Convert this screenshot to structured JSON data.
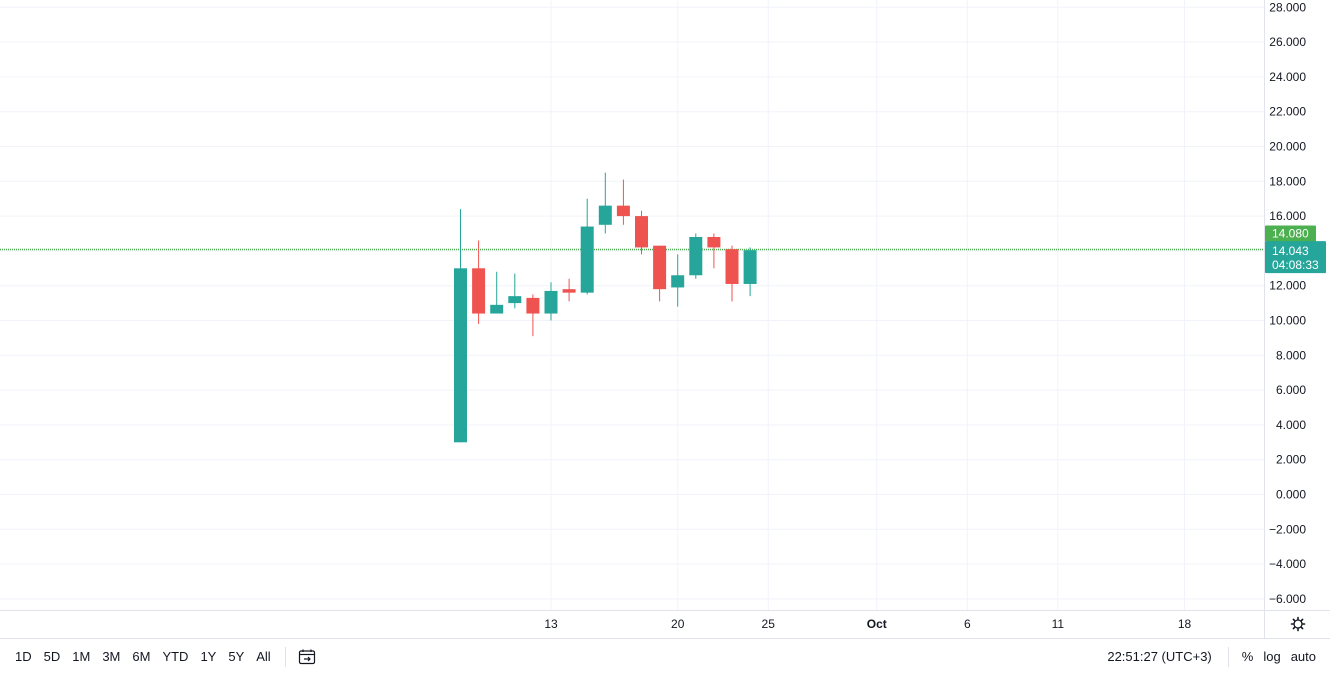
{
  "chart_data": {
    "type": "candlestick",
    "y_ticks": [
      "28.000",
      "26.000",
      "24.000",
      "22.000",
      "20.000",
      "18.000",
      "16.000",
      "14.000",
      "12.000",
      "10.000",
      "8.000",
      "6.000",
      "4.000",
      "2.000",
      "0.000",
      "−2.000",
      "−4.000",
      "−6.000"
    ],
    "ylim": [
      -6.7,
      28.4
    ],
    "x_ticks": [
      {
        "label": "13",
        "day": 13,
        "bold": false
      },
      {
        "label": "20",
        "day": 20,
        "bold": false
      },
      {
        "label": "25",
        "day": 25,
        "bold": false
      },
      {
        "label": "Oct",
        "day": 31,
        "bold": true
      },
      {
        "label": "6",
        "day": 36,
        "bold": false
      },
      {
        "label": "11",
        "day": 41,
        "bold": false
      },
      {
        "label": "18",
        "day": 48,
        "bold": false
      }
    ],
    "candles": [
      {
        "day": 8,
        "open": 3.0,
        "high": 16.4,
        "low": 3.0,
        "close": 13.0
      },
      {
        "day": 9,
        "open": 13.0,
        "high": 14.6,
        "low": 9.8,
        "close": 10.4
      },
      {
        "day": 10,
        "open": 10.4,
        "high": 12.8,
        "low": 10.4,
        "close": 10.9
      },
      {
        "day": 11,
        "open": 11.0,
        "high": 12.7,
        "low": 10.7,
        "close": 11.4
      },
      {
        "day": 12,
        "open": 11.3,
        "high": 11.5,
        "low": 9.1,
        "close": 10.4
      },
      {
        "day": 13,
        "open": 10.4,
        "high": 12.2,
        "low": 10.0,
        "close": 11.7
      },
      {
        "day": 14,
        "open": 11.8,
        "high": 12.4,
        "low": 11.1,
        "close": 11.6
      },
      {
        "day": 15,
        "open": 11.6,
        "high": 17.0,
        "low": 11.5,
        "close": 15.4
      },
      {
        "day": 16,
        "open": 15.5,
        "high": 18.5,
        "low": 15.0,
        "close": 16.6
      },
      {
        "day": 17,
        "open": 16.6,
        "high": 18.1,
        "low": 15.5,
        "close": 16.0
      },
      {
        "day": 18,
        "open": 16.0,
        "high": 16.3,
        "low": 13.8,
        "close": 14.2
      },
      {
        "day": 19,
        "open": 14.3,
        "high": 14.3,
        "low": 11.1,
        "close": 11.8
      },
      {
        "day": 20,
        "open": 11.9,
        "high": 13.8,
        "low": 10.8,
        "close": 12.6
      },
      {
        "day": 21,
        "open": 12.6,
        "high": 15.0,
        "low": 12.4,
        "close": 14.8
      },
      {
        "day": 22,
        "open": 14.8,
        "high": 15.0,
        "low": 13.0,
        "close": 14.2
      },
      {
        "day": 23,
        "open": 14.1,
        "high": 14.3,
        "low": 11.1,
        "close": 12.1
      },
      {
        "day": 24,
        "open": 12.1,
        "high": 14.2,
        "low": 11.4,
        "close": 14.043
      }
    ],
    "last_price_line": 14.08,
    "tags": [
      {
        "label": "14.080",
        "value": 14.08,
        "color": "#4caf50"
      },
      {
        "label": "14.043",
        "value": 14.043,
        "sub": "04:08:33",
        "color": "#26a69a"
      }
    ],
    "colors": {
      "up": "#26a69a",
      "down": "#ef5350",
      "line": "#4caf50",
      "grid": "#f0f3fa"
    }
  },
  "toolbar": {
    "ranges": [
      "1D",
      "5D",
      "1M",
      "3M",
      "6M",
      "YTD",
      "1Y",
      "5Y",
      "All"
    ],
    "clock": "22:51:27 (UTC+3)",
    "percent_label": "%",
    "log_label": "log",
    "auto_label": "auto"
  }
}
